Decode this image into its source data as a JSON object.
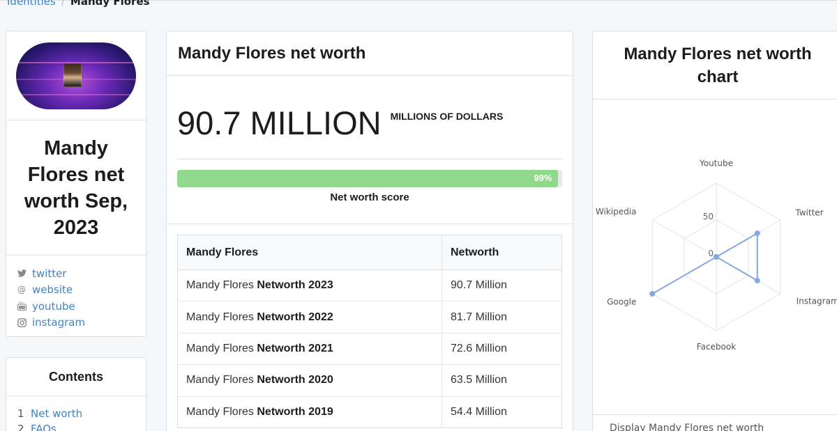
{
  "breadcrumb": {
    "parent": "Identities",
    "current": "Mandy Flores"
  },
  "profile": {
    "title": "Mandy Flores net worth Sep, 2023",
    "social": [
      {
        "icon": "twitter-icon",
        "label": "twitter"
      },
      {
        "icon": "at-icon",
        "label": "website"
      },
      {
        "icon": "youtube-icon",
        "label": "youtube"
      },
      {
        "icon": "instagram-icon",
        "label": "instagram"
      }
    ]
  },
  "contents": {
    "title": "Contents",
    "items": [
      {
        "num": "1",
        "label": "Net worth"
      },
      {
        "num": "2",
        "label": "FAQs"
      }
    ]
  },
  "networth": {
    "header": "Mandy Flores net worth",
    "amount": "90.7 MILLION",
    "unit": "MILLIONS OF DOLLARS",
    "score_percent": 99,
    "score_label_pct": "99%",
    "score_label": "Net worth score",
    "table": {
      "headers": [
        "Mandy Flores",
        "Networth"
      ],
      "rows": [
        {
          "prefix": "Mandy Flores ",
          "bold": "Networth 2023",
          "value": "90.7 Million"
        },
        {
          "prefix": "Mandy Flores ",
          "bold": "Networth 2022",
          "value": "81.7 Million"
        },
        {
          "prefix": "Mandy Flores ",
          "bold": "Networth 2021",
          "value": "72.6 Million"
        },
        {
          "prefix": "Mandy Flores ",
          "bold": "Networth 2020",
          "value": "63.5 Million"
        },
        {
          "prefix": "Mandy Flores ",
          "bold": "Networth 2019",
          "value": "54.4 Million"
        }
      ]
    }
  },
  "chart": {
    "header": "Mandy Flores net worth chart",
    "footer_text": "Display Mandy Flores net worth"
  },
  "chart_data": {
    "type": "radar",
    "categories": [
      "Youtube",
      "Twitter",
      "Instagram",
      "Facebook",
      "Google",
      "Wikipedia"
    ],
    "values": [
      0,
      64,
      64,
      0,
      100,
      0
    ],
    "ticks": [
      "0",
      "50"
    ],
    "range": [
      0,
      100
    ],
    "series_color": "#86a8e0"
  }
}
